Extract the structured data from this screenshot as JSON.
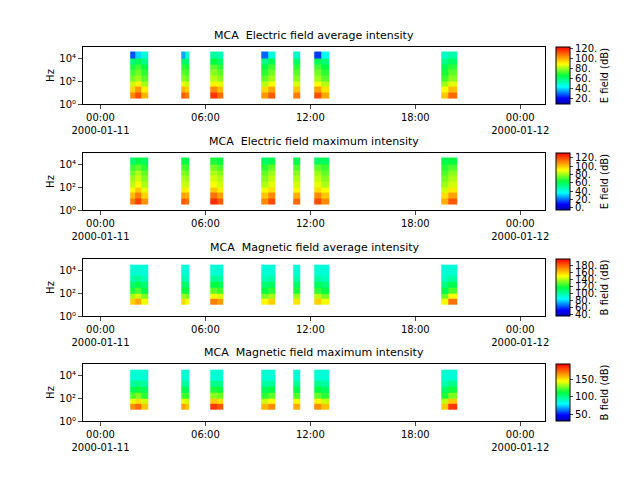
{
  "chart_data": [
    {
      "type": "heatmap",
      "title": "MCA  Electric field average intensity",
      "color": "rainbow",
      "log": "y",
      "x": [
        "2000-01-11 01:42",
        "2000-01-11 02:00",
        "2000-01-11 02:20",
        "2000-01-11 02:44",
        "2000-01-11 04:36",
        "2000-01-11 04:50",
        "2000-01-11 05:06",
        "2000-01-11 06:18",
        "2000-01-11 06:40",
        "2000-01-11 07:00",
        "2000-01-11 09:12",
        "2000-01-11 09:36",
        "2000-01-11 10:00",
        "2000-01-11 11:00",
        "2000-01-11 11:24",
        "2000-01-11 12:12",
        "2000-01-11 12:36",
        "2000-01-11 13:06",
        "2000-01-11 19:30",
        "2000-01-11 19:54",
        "2000-01-11 20:24"
      ],
      "y": [
        3.16,
        10,
        31.6,
        100,
        316,
        1000,
        3162,
        10000,
        40000
      ],
      "z": [
        [
          104,
          112,
          98,
          null,
          110,
          106,
          null,
          115,
          108,
          null,
          102,
          110,
          null,
          106,
          null,
          112,
          100,
          null,
          96,
          108
        ],
        [
          94,
          102,
          90,
          null,
          98,
          95,
          null,
          104,
          97,
          null,
          93,
          100,
          null,
          96,
          null,
          101,
          92,
          null,
          88,
          97
        ],
        [
          84,
          90,
          80,
          null,
          86,
          84,
          null,
          90,
          86,
          null,
          82,
          88,
          null,
          85,
          null,
          88,
          82,
          null,
          80,
          86
        ],
        [
          76,
          80,
          74,
          null,
          78,
          76,
          null,
          82,
          78,
          null,
          75,
          80,
          null,
          78,
          null,
          80,
          74,
          null,
          72,
          78
        ],
        [
          72,
          76,
          70,
          null,
          74,
          72,
          null,
          78,
          74,
          null,
          70,
          76,
          null,
          74,
          null,
          76,
          70,
          null,
          68,
          74
        ],
        [
          68,
          72,
          66,
          null,
          70,
          68,
          null,
          74,
          70,
          null,
          66,
          72,
          null,
          70,
          null,
          72,
          66,
          null,
          64,
          70
        ],
        [
          60,
          64,
          58,
          null,
          62,
          60,
          null,
          66,
          62,
          null,
          58,
          64,
          null,
          62,
          null,
          64,
          60,
          null,
          58,
          62
        ],
        [
          28,
          40,
          48,
          null,
          36,
          50,
          null,
          55,
          52,
          null,
          30,
          48,
          null,
          50,
          null,
          26,
          45,
          null,
          50,
          54
        ]
      ],
      "xlim": [
        "2000-01-10 23:00",
        "2000-01-12 01:25"
      ],
      "xticks": [
        {
          "value": "2000-01-11 00:00",
          "label": "00:00\n2000-01-11"
        },
        {
          "value": "2000-01-11 06:00",
          "label": "06:00"
        },
        {
          "value": "2000-01-11 12:00",
          "label": "12:00"
        },
        {
          "value": "2000-01-11 18:00",
          "label": "18:00"
        },
        {
          "value": "2000-01-12 00:00",
          "label": "00:00\n2000-01-12"
        }
      ],
      "ylim": [
        1,
        100000
      ],
      "yticks": [
        {
          "value": 1,
          "label": "10⁰"
        },
        {
          "value": 100,
          "label": "10²"
        },
        {
          "value": 10000,
          "label": "10⁴"
        }
      ],
      "ylabel": "Hz",
      "zlim": [
        10,
        122
      ],
      "zticks": [
        {
          "value": 20,
          "label": "20."
        },
        {
          "value": 40,
          "label": "40."
        },
        {
          "value": 60,
          "label": "60."
        },
        {
          "value": 80,
          "label": "80."
        },
        {
          "value": 100,
          "label": "100."
        },
        {
          "value": 120,
          "label": "120."
        }
      ],
      "zlabel": "E field (dB)"
    },
    {
      "type": "heatmap",
      "title": "MCA  Electric field maximum intensity",
      "color": "rainbow",
      "log": "y",
      "x": [
        "2000-01-11 01:42",
        "2000-01-11 02:00",
        "2000-01-11 02:20",
        "2000-01-11 02:44",
        "2000-01-11 04:36",
        "2000-01-11 04:50",
        "2000-01-11 05:06",
        "2000-01-11 06:18",
        "2000-01-11 06:40",
        "2000-01-11 07:00",
        "2000-01-11 09:12",
        "2000-01-11 09:36",
        "2000-01-11 10:00",
        "2000-01-11 11:00",
        "2000-01-11 11:24",
        "2000-01-11 12:12",
        "2000-01-11 12:36",
        "2000-01-11 13:06",
        "2000-01-11 19:30",
        "2000-01-11 19:54",
        "2000-01-11 20:24"
      ],
      "y": [
        3.16,
        10,
        31.6,
        100,
        316,
        1000,
        3162,
        10000,
        40000
      ],
      "z": [
        [
          112,
          122,
          108,
          null,
          118,
          114,
          null,
          125,
          118,
          null,
          110,
          120,
          null,
          115,
          null,
          120,
          110,
          null,
          104,
          118
        ],
        [
          102,
          112,
          98,
          null,
          106,
          104,
          null,
          114,
          106,
          null,
          100,
          110,
          null,
          104,
          null,
          110,
          100,
          null,
          96,
          106
        ],
        [
          92,
          100,
          88,
          null,
          94,
          92,
          null,
          100,
          94,
          null,
          90,
          96,
          null,
          92,
          null,
          96,
          90,
          null,
          86,
          94
        ],
        [
          84,
          90,
          82,
          null,
          86,
          84,
          null,
          90,
          86,
          null,
          82,
          88,
          null,
          86,
          null,
          88,
          82,
          null,
          80,
          86
        ],
        [
          80,
          86,
          78,
          null,
          82,
          80,
          null,
          86,
          82,
          null,
          78,
          84,
          null,
          82,
          null,
          84,
          78,
          null,
          76,
          82
        ],
        [
          76,
          82,
          74,
          null,
          78,
          76,
          null,
          82,
          78,
          null,
          74,
          80,
          null,
          78,
          null,
          80,
          74,
          null,
          72,
          78
        ],
        [
          70,
          74,
          68,
          null,
          72,
          70,
          null,
          76,
          72,
          null,
          68,
          74,
          null,
          72,
          null,
          74,
          70,
          null,
          68,
          72
        ],
        [
          58,
          64,
          60,
          null,
          62,
          62,
          null,
          66,
          64,
          null,
          58,
          62,
          null,
          62,
          null,
          60,
          60,
          null,
          62,
          64
        ]
      ],
      "xlim": [
        "2000-01-10 23:00",
        "2000-01-12 01:25"
      ],
      "xticks": [
        {
          "value": "2000-01-11 00:00",
          "label": "00:00\n2000-01-11"
        },
        {
          "value": "2000-01-11 06:00",
          "label": "06:00"
        },
        {
          "value": "2000-01-11 12:00",
          "label": "12:00"
        },
        {
          "value": "2000-01-11 18:00",
          "label": "18:00"
        },
        {
          "value": "2000-01-12 00:00",
          "label": "00:00\n2000-01-12"
        }
      ],
      "ylim": [
        1,
        100000
      ],
      "yticks": [
        {
          "value": 1,
          "label": "10⁰"
        },
        {
          "value": 100,
          "label": "10²"
        },
        {
          "value": 10000,
          "label": "10⁴"
        }
      ],
      "ylabel": "Hz",
      "zlim": [
        -5,
        132
      ],
      "zticks": [
        {
          "value": 0,
          "label": "0."
        },
        {
          "value": 20,
          "label": "20."
        },
        {
          "value": 40,
          "label": "40."
        },
        {
          "value": 60,
          "label": "60."
        },
        {
          "value": 80,
          "label": "80."
        },
        {
          "value": 100,
          "label": "100."
        },
        {
          "value": 120,
          "label": "120."
        }
      ],
      "zlabel": "E field (dB)"
    },
    {
      "type": "heatmap",
      "title": "MCA  Magnetic field average intensity",
      "color": "rainbow",
      "log": "y",
      "x": [
        "2000-01-11 01:42",
        "2000-01-11 02:00",
        "2000-01-11 02:20",
        "2000-01-11 02:44",
        "2000-01-11 04:36",
        "2000-01-11 04:50",
        "2000-01-11 05:06",
        "2000-01-11 06:18",
        "2000-01-11 06:40",
        "2000-01-11 07:00",
        "2000-01-11 09:12",
        "2000-01-11 09:36",
        "2000-01-11 10:00",
        "2000-01-11 11:00",
        "2000-01-11 11:24",
        "2000-01-11 12:12",
        "2000-01-11 12:36",
        "2000-01-11 13:06",
        "2000-01-11 19:30",
        "2000-01-11 19:54",
        "2000-01-11 20:24"
      ],
      "y": [
        10,
        31.6,
        100,
        316,
        1000,
        3162,
        10000,
        31623
      ],
      "z": [
        [
          160,
          168,
          150,
          null,
          158,
          150,
          null,
          176,
          170,
          null,
          152,
          160,
          null,
          156,
          null,
          160,
          150,
          null,
          150,
          178
        ],
        [
          140,
          146,
          134,
          null,
          138,
          134,
          null,
          150,
          146,
          null,
          134,
          140,
          null,
          138,
          null,
          142,
          134,
          null,
          132,
          150
        ],
        [
          122,
          128,
          118,
          null,
          120,
          118,
          null,
          130,
          126,
          null,
          118,
          124,
          null,
          122,
          null,
          124,
          118,
          null,
          116,
          128
        ],
        [
          112,
          116,
          110,
          null,
          112,
          110,
          null,
          118,
          116,
          null,
          110,
          114,
          null,
          112,
          null,
          114,
          110,
          null,
          108,
          116
        ],
        [
          100,
          104,
          98,
          null,
          100,
          98,
          null,
          104,
          102,
          null,
          98,
          102,
          null,
          100,
          null,
          102,
          98,
          null,
          96,
          102
        ],
        [
          94,
          94,
          93,
          null,
          94,
          93,
          null,
          94,
          94,
          null,
          93,
          94,
          null,
          94,
          null,
          94,
          93,
          null,
          93,
          94
        ],
        [
          92,
          93,
          92,
          null,
          92,
          92,
          null,
          93,
          93,
          null,
          92,
          92,
          null,
          92,
          null,
          93,
          92,
          null,
          92,
          93
        ]
      ],
      "xlim": [
        "2000-01-10 23:00",
        "2000-01-12 01:25"
      ],
      "xticks": [
        {
          "value": "2000-01-11 00:00",
          "label": "00:00\n2000-01-11"
        },
        {
          "value": "2000-01-11 06:00",
          "label": "06:00"
        },
        {
          "value": "2000-01-11 12:00",
          "label": "12:00"
        },
        {
          "value": "2000-01-11 18:00",
          "label": "18:00"
        },
        {
          "value": "2000-01-12 00:00",
          "label": "00:00\n2000-01-12"
        }
      ],
      "ylim": [
        1,
        100000
      ],
      "yticks": [
        {
          "value": 1,
          "label": "10⁰"
        },
        {
          "value": 100,
          "label": "10²"
        },
        {
          "value": 10000,
          "label": "10⁴"
        }
      ],
      "ylabel": "Hz",
      "zlim": [
        37,
        200
      ],
      "zticks": [
        {
          "value": 40,
          "label": "40."
        },
        {
          "value": 60,
          "label": "60."
        },
        {
          "value": 80,
          "label": "80."
        },
        {
          "value": 100,
          "label": "100."
        },
        {
          "value": 120,
          "label": "120."
        },
        {
          "value": 140,
          "label": "140."
        },
        {
          "value": 160,
          "label": "160."
        },
        {
          "value": 180,
          "label": "180."
        }
      ],
      "zlabel": "B field (dB)"
    },
    {
      "type": "heatmap",
      "title": "MCA  Magnetic field maximum intensity",
      "color": "rainbow",
      "log": "y",
      "x": [
        "2000-01-11 01:42",
        "2000-01-11 02:00",
        "2000-01-11 02:20",
        "2000-01-11 02:44",
        "2000-01-11 04:36",
        "2000-01-11 04:50",
        "2000-01-11 05:06",
        "2000-01-11 06:18",
        "2000-01-11 06:40",
        "2000-01-11 07:00",
        "2000-01-11 09:12",
        "2000-01-11 09:36",
        "2000-01-11 10:00",
        "2000-01-11 11:00",
        "2000-01-11 11:24",
        "2000-01-11 12:12",
        "2000-01-11 12:36",
        "2000-01-11 13:06",
        "2000-01-11 19:30",
        "2000-01-11 19:54",
        "2000-01-11 20:24"
      ],
      "y": [
        10,
        31.6,
        100,
        316,
        1000,
        3162,
        10000,
        31623
      ],
      "z": [
        [
          165,
          172,
          155,
          null,
          162,
          156,
          null,
          182,
          176,
          null,
          158,
          166,
          null,
          160,
          null,
          166,
          156,
          null,
          154,
          182
        ],
        [
          142,
          150,
          138,
          null,
          142,
          138,
          null,
          154,
          150,
          null,
          138,
          144,
          null,
          142,
          null,
          146,
          138,
          null,
          136,
          154
        ],
        [
          122,
          128,
          118,
          null,
          120,
          118,
          null,
          130,
          126,
          null,
          118,
          124,
          null,
          122,
          null,
          124,
          118,
          null,
          116,
          128
        ],
        [
          110,
          114,
          108,
          null,
          110,
          108,
          null,
          116,
          114,
          null,
          108,
          112,
          null,
          110,
          null,
          112,
          108,
          null,
          106,
          114
        ],
        [
          98,
          100,
          96,
          null,
          98,
          96,
          null,
          100,
          100,
          null,
          96,
          98,
          null,
          98,
          null,
          100,
          96,
          null,
          94,
          100
        ],
        [
          88,
          88,
          88,
          null,
          88,
          88,
          null,
          88,
          88,
          null,
          88,
          88,
          null,
          88,
          null,
          88,
          88,
          null,
          88,
          88
        ],
        [
          88,
          88,
          88,
          null,
          88,
          88,
          null,
          88,
          88,
          null,
          88,
          88,
          null,
          88,
          null,
          88,
          88,
          null,
          88,
          88
        ]
      ],
      "xlim": [
        "2000-01-10 23:00",
        "2000-01-12 01:25"
      ],
      "xticks": [
        {
          "value": "2000-01-11 00:00",
          "label": "00:00\n2000-01-11"
        },
        {
          "value": "2000-01-11 06:00",
          "label": "06:00"
        },
        {
          "value": "2000-01-11 12:00",
          "label": "12:00"
        },
        {
          "value": "2000-01-11 18:00",
          "label": "18:00"
        },
        {
          "value": "2000-01-12 00:00",
          "label": "00:00\n2000-01-12"
        }
      ],
      "ylim": [
        1,
        100000
      ],
      "yticks": [
        {
          "value": 1,
          "label": "10⁰"
        },
        {
          "value": 100,
          "label": "10²"
        },
        {
          "value": 10000,
          "label": "10⁴"
        }
      ],
      "ylabel": "Hz",
      "zlim": [
        33,
        192
      ],
      "zticks": [
        {
          "value": 50,
          "label": "50."
        },
        {
          "value": 100,
          "label": "100."
        },
        {
          "value": 150,
          "label": "150."
        }
      ],
      "zlabel": "B field (dB)"
    }
  ]
}
